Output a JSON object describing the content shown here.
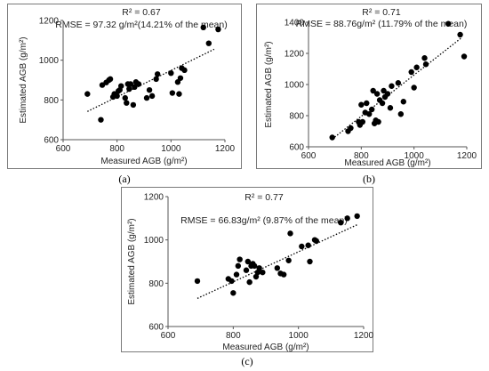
{
  "chart_data": [
    {
      "type": "scatter",
      "id": "a",
      "caption": "(a)",
      "r2_label": "R² = 0.67",
      "rmse_label": "RMSE = 97.32 g/m²(14.21% of the mean)",
      "xlabel": "Measured AGB (g/m²)",
      "ylabel": "Estimated AGB (g/m²)",
      "xlim": [
        600,
        1200
      ],
      "ylim": [
        600,
        1200
      ],
      "xticks": [
        "600",
        "800",
        "1000",
        "1200"
      ],
      "yticks": [
        "600",
        "800",
        "1000",
        "1200"
      ],
      "trendline": {
        "style": "dotted",
        "from": [
          690,
          742
        ],
        "to": [
          1160,
          1055
        ]
      },
      "points": [
        [
          690,
          830
        ],
        [
          740,
          700
        ],
        [
          745,
          875
        ],
        [
          760,
          888
        ],
        [
          770,
          900
        ],
        [
          775,
          905
        ],
        [
          785,
          815
        ],
        [
          790,
          830
        ],
        [
          795,
          825
        ],
        [
          800,
          820
        ],
        [
          805,
          845
        ],
        [
          810,
          850
        ],
        [
          815,
          870
        ],
        [
          830,
          810
        ],
        [
          835,
          785
        ],
        [
          840,
          880
        ],
        [
          845,
          855
        ],
        [
          850,
          880
        ],
        [
          860,
          775
        ],
        [
          865,
          865
        ],
        [
          870,
          890
        ],
        [
          880,
          880
        ],
        [
          910,
          810
        ],
        [
          920,
          850
        ],
        [
          930,
          820
        ],
        [
          945,
          905
        ],
        [
          950,
          930
        ],
        [
          1000,
          935
        ],
        [
          1005,
          835
        ],
        [
          1025,
          890
        ],
        [
          1030,
          830
        ],
        [
          1035,
          910
        ],
        [
          1040,
          960
        ],
        [
          1050,
          950
        ],
        [
          1120,
          1165
        ],
        [
          1140,
          1085
        ],
        [
          1175,
          1155
        ]
      ]
    },
    {
      "type": "scatter",
      "id": "b",
      "caption": "(b)",
      "r2_label": "R² = 0.71",
      "rmse_label": "RMSE = 88.76g/m² (11.79% of the mean)",
      "xlabel": "Measured AGB (g/m²)",
      "ylabel": "Estimated AGB (g/m²)",
      "xlim": [
        600,
        1200
      ],
      "ylim": [
        600,
        1400
      ],
      "xticks": [
        "600",
        "800",
        "1000",
        "1200"
      ],
      "yticks": [
        "600",
        "800",
        "1000",
        "1200",
        "1400"
      ],
      "trendline": {
        "style": "dotted",
        "from": [
          690,
          650
        ],
        "to": [
          1180,
          1300
        ]
      },
      "points": [
        [
          690,
          660
        ],
        [
          750,
          700
        ],
        [
          760,
          720
        ],
        [
          790,
          760
        ],
        [
          795,
          740
        ],
        [
          800,
          870
        ],
        [
          805,
          760
        ],
        [
          815,
          820
        ],
        [
          820,
          880
        ],
        [
          830,
          810
        ],
        [
          840,
          840
        ],
        [
          845,
          960
        ],
        [
          850,
          750
        ],
        [
          855,
          770
        ],
        [
          860,
          940
        ],
        [
          865,
          760
        ],
        [
          870,
          900
        ],
        [
          880,
          880
        ],
        [
          885,
          960
        ],
        [
          890,
          920
        ],
        [
          900,
          940
        ],
        [
          910,
          850
        ],
        [
          915,
          990
        ],
        [
          940,
          1010
        ],
        [
          950,
          810
        ],
        [
          960,
          890
        ],
        [
          990,
          1080
        ],
        [
          1000,
          980
        ],
        [
          1010,
          1110
        ],
        [
          1040,
          1170
        ],
        [
          1045,
          1130
        ],
        [
          1130,
          1390
        ],
        [
          1175,
          1320
        ],
        [
          1190,
          1180
        ]
      ]
    },
    {
      "type": "scatter",
      "id": "c",
      "caption": "(c)",
      "r2_label": "R² = 0.77",
      "rmse_label": "RMSE = 66.83g/m² (9.87% of the mean)",
      "xlabel": "Measured AGB (g/m²)",
      "ylabel": "Estimated AGB (g/m²)",
      "xlim": [
        600,
        1200
      ],
      "ylim": [
        600,
        1200
      ],
      "xticks": [
        "600",
        "800",
        "1000",
        "1200"
      ],
      "yticks": [
        "600",
        "800",
        "1000",
        "1200"
      ],
      "trendline": {
        "style": "dotted",
        "from": [
          690,
          730
        ],
        "to": [
          1180,
          1070
        ]
      },
      "points": [
        [
          690,
          810
        ],
        [
          785,
          820
        ],
        [
          795,
          810
        ],
        [
          800,
          755
        ],
        [
          810,
          840
        ],
        [
          815,
          880
        ],
        [
          820,
          910
        ],
        [
          840,
          860
        ],
        [
          845,
          900
        ],
        [
          850,
          805
        ],
        [
          855,
          880
        ],
        [
          860,
          890
        ],
        [
          865,
          880
        ],
        [
          870,
          830
        ],
        [
          875,
          850
        ],
        [
          880,
          870
        ],
        [
          890,
          850
        ],
        [
          935,
          870
        ],
        [
          945,
          845
        ],
        [
          955,
          840
        ],
        [
          970,
          905
        ],
        [
          975,
          1030
        ],
        [
          1010,
          970
        ],
        [
          1030,
          975
        ],
        [
          1035,
          900
        ],
        [
          1050,
          1000
        ],
        [
          1055,
          995
        ],
        [
          1130,
          1080
        ],
        [
          1150,
          1100
        ],
        [
          1180,
          1110
        ]
      ]
    }
  ]
}
